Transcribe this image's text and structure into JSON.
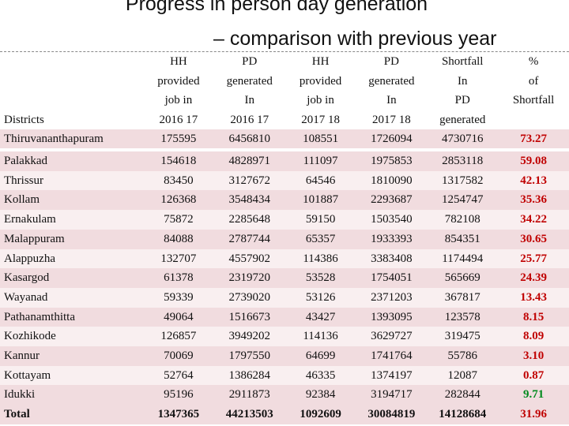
{
  "title": {
    "line1": "Progress in person day generation",
    "line2": "– comparison with previous year"
  },
  "colors": {
    "high": "#c00000",
    "low": "#008a1e",
    "row_shade": "#f1dcdf"
  },
  "headers": {
    "districts": "Districts",
    "cols": [
      [
        "HH",
        "provided",
        "job in",
        "2016 17"
      ],
      [
        "PD",
        "generated",
        "In",
        "2016 17"
      ],
      [
        "HH",
        "provided",
        "job in",
        "2017 18"
      ],
      [
        "PD",
        "generated",
        "In",
        "2017 18"
      ],
      [
        "Shortfall",
        "In",
        "PD",
        "generated"
      ],
      [
        "%",
        "of",
        "Shortfall",
        ""
      ]
    ]
  },
  "rows": [
    {
      "district": "Thiruvananthapuram",
      "hh1617": "175595",
      "pd1617": "6456810",
      "hh1718": "108551",
      "pd1718": "1726094",
      "shortfall": "4730716",
      "pct": "73.27",
      "level": "high"
    },
    {
      "district": "Palakkad",
      "hh1617": "154618",
      "pd1617": "4828971",
      "hh1718": "111097",
      "pd1718": "1975853",
      "shortfall": "2853118",
      "pct": "59.08",
      "level": "high"
    },
    {
      "district": "Thrissur",
      "hh1617": "83450",
      "pd1617": "3127672",
      "hh1718": "64546",
      "pd1718": "1810090",
      "shortfall": "1317582",
      "pct": "42.13",
      "level": "high"
    },
    {
      "district": "Kollam",
      "hh1617": "126368",
      "pd1617": "3548434",
      "hh1718": "101887",
      "pd1718": "2293687",
      "shortfall": "1254747",
      "pct": "35.36",
      "level": "high"
    },
    {
      "district": "Ernakulam",
      "hh1617": "75872",
      "pd1617": "2285648",
      "hh1718": "59150",
      "pd1718": "1503540",
      "shortfall": "782108",
      "pct": "34.22",
      "level": "high"
    },
    {
      "district": "Malappuram",
      "hh1617": "84088",
      "pd1617": "2787744",
      "hh1718": "65357",
      "pd1718": "1933393",
      "shortfall": "854351",
      "pct": "30.65",
      "level": "high"
    },
    {
      "district": "Alappuzha",
      "hh1617": "132707",
      "pd1617": "4557902",
      "hh1718": "114386",
      "pd1718": "3383408",
      "shortfall": "1174494",
      "pct": "25.77",
      "level": "high"
    },
    {
      "district": "Kasargod",
      "hh1617": "61378",
      "pd1617": "2319720",
      "hh1718": "53528",
      "pd1718": "1754051",
      "shortfall": "565669",
      "pct": "24.39",
      "level": "high"
    },
    {
      "district": "Wayanad",
      "hh1617": "59339",
      "pd1617": "2739020",
      "hh1718": "53126",
      "pd1718": "2371203",
      "shortfall": "367817",
      "pct": "13.43",
      "level": "high"
    },
    {
      "district": "Pathanamthitta",
      "hh1617": "49064",
      "pd1617": "1516673",
      "hh1718": "43427",
      "pd1718": "1393095",
      "shortfall": "123578",
      "pct": "8.15",
      "level": "high"
    },
    {
      "district": "Kozhikode",
      "hh1617": "126857",
      "pd1617": "3949202",
      "hh1718": "114136",
      "pd1718": "3629727",
      "shortfall": "319475",
      "pct": "8.09",
      "level": "high"
    },
    {
      "district": "Kannur",
      "hh1617": "70069",
      "pd1617": "1797550",
      "hh1718": "64699",
      "pd1718": "1741764",
      "shortfall": "55786",
      "pct": "3.10",
      "level": "high"
    },
    {
      "district": "Kottayam",
      "hh1617": "52764",
      "pd1617": "1386284",
      "hh1718": "46335",
      "pd1718": "1374197",
      "shortfall": "12087",
      "pct": "0.87",
      "level": "high"
    },
    {
      "district": "Idukki",
      "hh1617": "95196",
      "pd1617": "2911873",
      "hh1718": "92384",
      "pd1718": "3194717",
      "shortfall": "282844",
      "pct": "9.71",
      "level": "low"
    }
  ],
  "total": {
    "district": "Total",
    "hh1617": "1347365",
    "pd1617": "44213503",
    "hh1718": "1092609",
    "pd1718": "30084819",
    "shortfall": "14128684",
    "pct": "31.96",
    "level": "high"
  }
}
